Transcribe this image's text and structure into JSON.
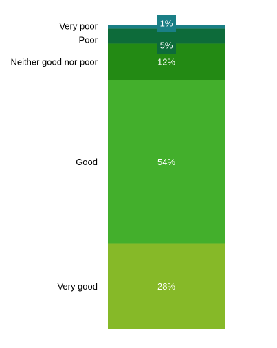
{
  "chart_data": {
    "type": "bar",
    "stacked": true,
    "orientation": "vertical",
    "categories": [
      "Very poor",
      "Poor",
      "Neither good nor poor",
      "Good",
      "Very good"
    ],
    "values": [
      1,
      5,
      12,
      54,
      28
    ],
    "data_labels": [
      "1%",
      "5%",
      "12%",
      "54%",
      "28%"
    ],
    "colors": [
      "#1a7f86",
      "#0d6b3a",
      "#238a14",
      "#43af2c",
      "#86b928"
    ],
    "label_box_colors": [
      "#1a7f86",
      "#0d6b3a",
      null,
      null,
      null
    ],
    "title": "",
    "xlabel": "",
    "ylabel": "",
    "ylim": [
      0,
      100
    ],
    "legend": "none",
    "grid": false
  }
}
